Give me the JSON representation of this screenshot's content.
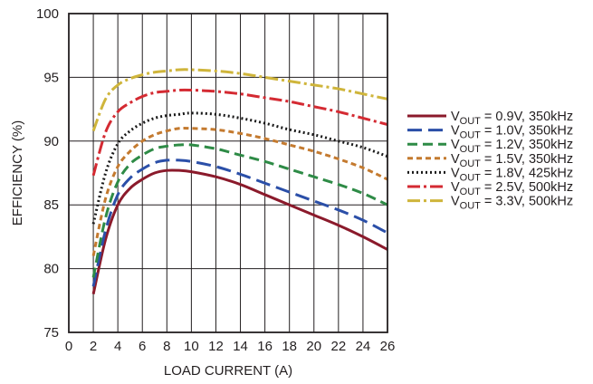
{
  "chart_data": {
    "type": "line",
    "xlabel": "LOAD CURRENT (A)",
    "ylabel": "EFFICIENCY (%)",
    "xlim": [
      0,
      26
    ],
    "ylim": [
      75,
      100
    ],
    "x_ticks": [
      "0",
      "2",
      "4",
      "6",
      "8",
      "10",
      "12",
      "14",
      "16",
      "18",
      "20",
      "22",
      "24",
      "26"
    ],
    "y_ticks": [
      "75",
      "80",
      "85",
      "90",
      "95",
      "100"
    ],
    "grid": true,
    "legend_position": "right",
    "series": [
      {
        "name": "V",
        "sub": "OUT",
        "suffix": " = 0.9V, 350kHz",
        "color": "#8b1a2b",
        "dash": "solid",
        "x": [
          2,
          3,
          4,
          5,
          6,
          7,
          8,
          9,
          10,
          12,
          14,
          16,
          18,
          20,
          22,
          24,
          26
        ],
        "y": [
          78.0,
          82.3,
          85.0,
          86.3,
          87.0,
          87.5,
          87.7,
          87.7,
          87.6,
          87.2,
          86.6,
          85.8,
          85.0,
          84.2,
          83.4,
          82.5,
          81.5
        ]
      },
      {
        "name": "V",
        "sub": "OUT",
        "suffix": " = 1.0V, 350kHz",
        "color": "#2b4fa8",
        "dash": "longdash",
        "x": [
          2,
          3,
          4,
          5,
          6,
          7,
          8,
          9,
          10,
          12,
          14,
          16,
          18,
          20,
          22,
          24,
          26
        ],
        "y": [
          78.6,
          83.0,
          85.8,
          87.1,
          87.8,
          88.3,
          88.5,
          88.5,
          88.4,
          88.0,
          87.4,
          86.7,
          86.0,
          85.3,
          84.6,
          83.8,
          82.8
        ]
      },
      {
        "name": "V",
        "sub": "OUT",
        "suffix": " = 1.2V, 350kHz",
        "color": "#2e8b46",
        "dash": "dash",
        "x": [
          2,
          3,
          4,
          5,
          6,
          7,
          8,
          9,
          10,
          12,
          14,
          16,
          18,
          20,
          22,
          24,
          26
        ],
        "y": [
          79.3,
          84.0,
          86.8,
          88.2,
          88.9,
          89.4,
          89.6,
          89.7,
          89.7,
          89.4,
          88.9,
          88.4,
          87.8,
          87.2,
          86.6,
          85.9,
          85.0
        ]
      },
      {
        "name": "V",
        "sub": "OUT",
        "suffix": " = 1.5V, 350kHz",
        "color": "#c47a2f",
        "dash": "shortdash",
        "x": [
          2,
          3,
          4,
          5,
          6,
          7,
          8,
          9,
          10,
          12,
          14,
          16,
          18,
          20,
          22,
          24,
          26
        ],
        "y": [
          81.0,
          85.5,
          88.0,
          89.2,
          90.0,
          90.5,
          90.8,
          91.0,
          91.0,
          90.9,
          90.6,
          90.2,
          89.7,
          89.2,
          88.6,
          87.9,
          87.0
        ]
      },
      {
        "name": "V",
        "sub": "OUT",
        "suffix": " = 1.8V, 425kHz",
        "color": "#1a1a1a",
        "dash": "dot",
        "x": [
          2,
          3,
          4,
          5,
          6,
          7,
          8,
          9,
          10,
          12,
          14,
          16,
          18,
          20,
          22,
          24,
          26
        ],
        "y": [
          83.5,
          87.5,
          89.8,
          90.8,
          91.4,
          91.8,
          92.0,
          92.1,
          92.2,
          92.1,
          91.8,
          91.4,
          90.9,
          90.5,
          90.0,
          89.5,
          88.8
        ]
      },
      {
        "name": "V",
        "sub": "OUT",
        "suffix": " = 2.5V, 500kHz",
        "color": "#d42a32",
        "dash": "dashdot",
        "x": [
          2,
          3,
          4,
          5,
          6,
          7,
          8,
          9,
          10,
          12,
          14,
          16,
          18,
          20,
          22,
          24,
          26
        ],
        "y": [
          87.3,
          90.7,
          92.3,
          93.0,
          93.5,
          93.8,
          93.9,
          94.0,
          94.0,
          93.9,
          93.7,
          93.4,
          93.1,
          92.7,
          92.3,
          91.8,
          91.3
        ]
      },
      {
        "name": "V",
        "sub": "OUT",
        "suffix": " = 3.3V, 500kHz",
        "color": "#cfb53b",
        "dash": "dashdot",
        "x": [
          2,
          3,
          4,
          5,
          6,
          7,
          8,
          9,
          10,
          12,
          14,
          16,
          18,
          20,
          22,
          24,
          26
        ],
        "y": [
          90.8,
          93.3,
          94.4,
          94.9,
          95.2,
          95.4,
          95.5,
          95.6,
          95.6,
          95.5,
          95.3,
          95.0,
          94.7,
          94.4,
          94.1,
          93.7,
          93.3
        ]
      }
    ]
  }
}
